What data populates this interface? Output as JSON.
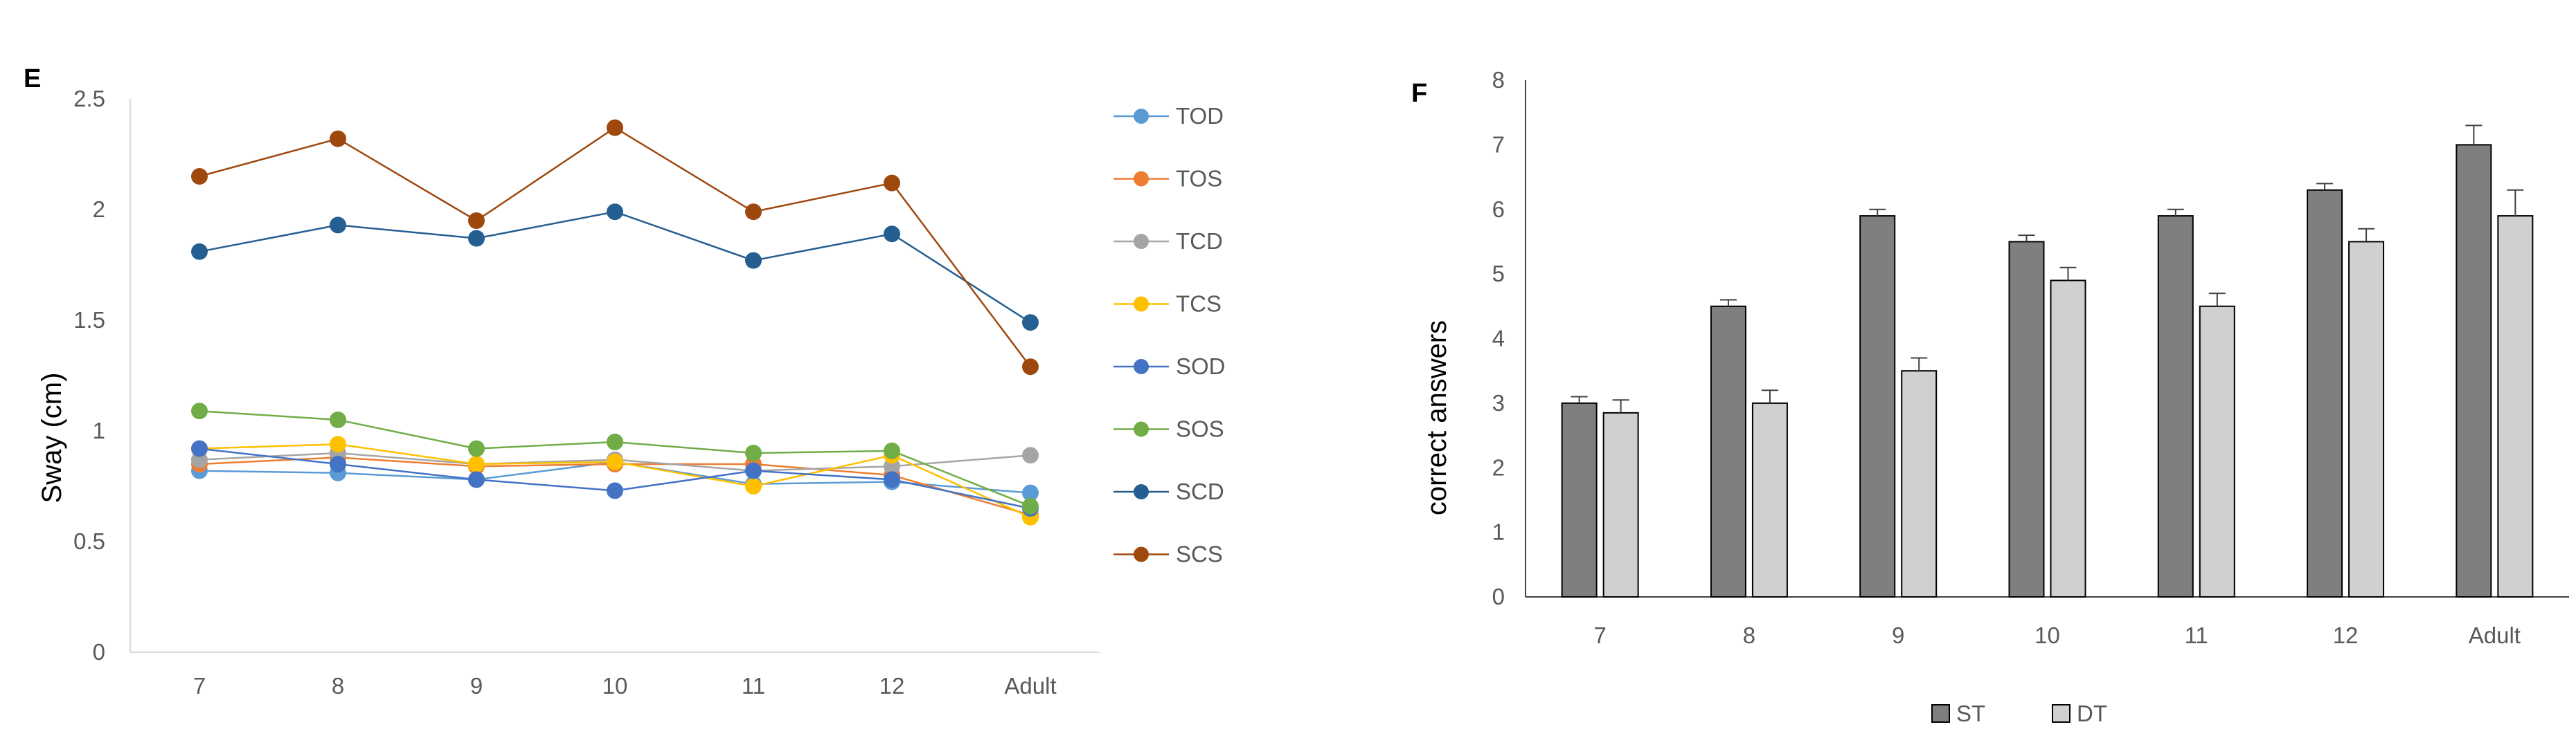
{
  "chart_data": [
    {
      "panel": "E",
      "type": "line",
      "title": "",
      "xlabel": "",
      "ylabel": "Sway (cm)",
      "categories": [
        "7",
        "8",
        "9",
        "10",
        "11",
        "12",
        "Adult"
      ],
      "ylim": [
        0,
        2.5
      ],
      "yticks": [
        "0",
        "0.5",
        "1",
        "1.5",
        "2",
        "2.5"
      ],
      "grid": false,
      "legend_position": "right",
      "series": [
        {
          "name": "TOD",
          "color": "#5b9bd5",
          "values": [
            0.82,
            0.81,
            0.78,
            0.86,
            0.76,
            0.77,
            0.72
          ]
        },
        {
          "name": "TOS",
          "color": "#ed7d31",
          "values": [
            0.85,
            0.88,
            0.84,
            0.85,
            0.85,
            0.8,
            0.62
          ]
        },
        {
          "name": "TCD",
          "color": "#a5a5a5",
          "values": [
            0.87,
            0.9,
            0.85,
            0.87,
            0.82,
            0.84,
            0.89
          ]
        },
        {
          "name": "TCS",
          "color": "#ffc000",
          "values": [
            0.92,
            0.94,
            0.85,
            0.86,
            0.75,
            0.89,
            0.61
          ]
        },
        {
          "name": "SOD",
          "color": "#4472c4",
          "values": [
            0.92,
            0.85,
            0.78,
            0.73,
            0.82,
            0.78,
            0.65
          ]
        },
        {
          "name": "SOS",
          "color": "#70ad47",
          "values": [
            1.09,
            1.05,
            0.92,
            0.95,
            0.9,
            0.91,
            0.66
          ]
        },
        {
          "name": "SCD",
          "color": "#255e91",
          "values": [
            1.81,
            1.93,
            1.87,
            1.99,
            1.77,
            1.89,
            1.49
          ]
        },
        {
          "name": "SCS",
          "color": "#9e480e",
          "values": [
            2.15,
            2.32,
            1.95,
            2.37,
            1.99,
            2.12,
            1.29
          ]
        }
      ]
    },
    {
      "panel": "F",
      "type": "bar",
      "title": "",
      "xlabel": "",
      "ylabel": "correct answers",
      "categories": [
        "7",
        "8",
        "9",
        "10",
        "11",
        "12",
        "Adult"
      ],
      "ylim": [
        0,
        8
      ],
      "yticks": [
        "0",
        "1",
        "2",
        "3",
        "4",
        "5",
        "6",
        "7",
        "8"
      ],
      "grid": false,
      "legend_position": "bottom",
      "error_bars": true,
      "series": [
        {
          "name": "ST",
          "color": "#7f7f7f",
          "values": [
            3.0,
            4.5,
            5.9,
            5.5,
            5.9,
            6.3,
            7.0
          ],
          "errors": [
            0.1,
            0.1,
            0.1,
            0.1,
            0.1,
            0.1,
            0.3
          ]
        },
        {
          "name": "DT",
          "color": "#d0d0d0",
          "values": [
            2.85,
            3.0,
            3.5,
            4.9,
            4.5,
            5.5,
            5.9
          ],
          "errors": [
            0.2,
            0.2,
            0.2,
            0.2,
            0.2,
            0.2,
            0.4
          ]
        }
      ]
    }
  ]
}
